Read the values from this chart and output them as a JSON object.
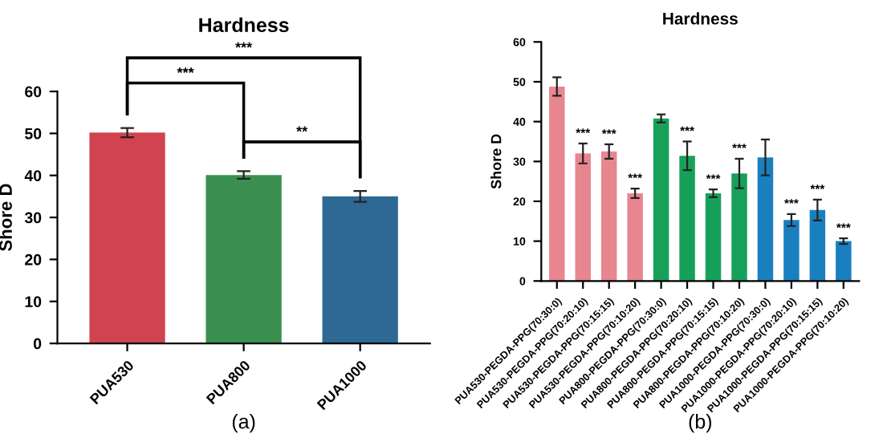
{
  "chart_data": [
    {
      "type": "bar",
      "title": "Hardness",
      "ylabel": "Shore D",
      "categories": [
        "PUA530",
        "PUA800",
        "PUA1000"
      ],
      "values": [
        50.2,
        40.1,
        35.0
      ],
      "errors": [
        1.1,
        0.9,
        1.3
      ],
      "colors": [
        "#d0434f",
        "#3a8f4e",
        "#2e6895"
      ],
      "ylim": [
        0,
        60
      ],
      "yticks": [
        0,
        10,
        20,
        30,
        40,
        50,
        60
      ],
      "grid": false,
      "legend": false,
      "annotations": [
        "***",
        "***",
        "**",
        "(a)"
      ]
    },
    {
      "type": "bar",
      "title": "Hardness",
      "ylabel": "Shore D",
      "categories": [
        "PUA530-PEGDA-PPG(70:30:0)",
        "PUA530-PEGDA-PPG(70:20:10)",
        "PUA530-PEGDA-PPG(70:15:15)",
        "PUA530-PEGDA-PPG(70:10:20)",
        "PUA800-PEGDA-PPG(70:30:0)",
        "PUA800-PEGDA-PPG(70:20:10)",
        "PUA800-PEGDA-PPG(70:15:15)",
        "PUA800-PEGDA-PPG(70:10:20)",
        "PUA1000-PEGDA-PPG(70:30:0)",
        "PUA1000-PEGDA-PPG(70:20:10)",
        "PUA1000-PEGDA-PPG(70:15:15)",
        "PUA1000-PEGDA-PPG(70:10:20)"
      ],
      "values": [
        48.8,
        32.0,
        32.5,
        22.0,
        40.8,
        31.4,
        22.0,
        27.0,
        31.0,
        15.3,
        17.8,
        10.0
      ],
      "errors": [
        2.3,
        2.5,
        1.8,
        1.2,
        1.0,
        3.6,
        1.0,
        3.7,
        4.5,
        1.5,
        2.6,
        0.7
      ],
      "value_labels": [
        null,
        "***",
        "***",
        "***",
        null,
        "***",
        "***",
        "***",
        null,
        "***",
        "***",
        "***"
      ],
      "colors": [
        "#e8868f",
        "#e8868f",
        "#e8868f",
        "#e8868f",
        "#17a05a",
        "#17a05a",
        "#17a05a",
        "#17a05a",
        "#1a7fbf",
        "#1a7fbf",
        "#1a7fbf",
        "#1a7fbf"
      ],
      "ylim": [
        0,
        60
      ],
      "yticks": [
        0,
        10,
        20,
        30,
        40,
        50,
        60
      ],
      "grid": false,
      "legend": false,
      "annotations": [
        "(b)"
      ]
    }
  ]
}
